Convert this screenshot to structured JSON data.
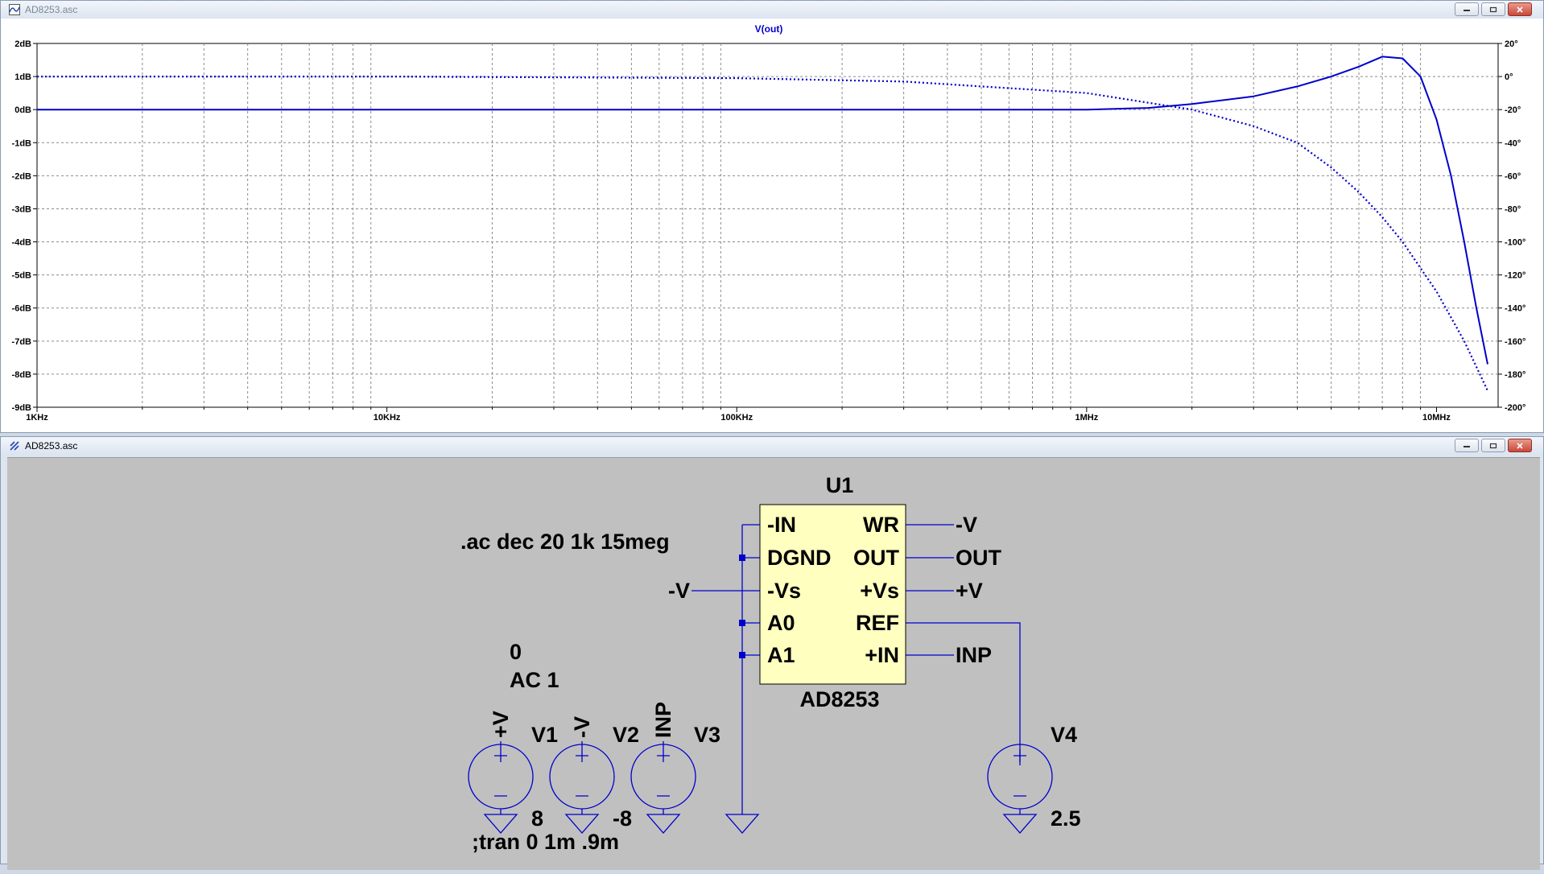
{
  "plot_window": {
    "title": "AD8253.asc",
    "icon": "waveform-icon",
    "trace_label": "V(out)",
    "left_axis_ticks": [
      "2dB",
      "1dB",
      "0dB",
      "-1dB",
      "-2dB",
      "-3dB",
      "-4dB",
      "-5dB",
      "-6dB",
      "-7dB",
      "-8dB",
      "-9dB"
    ],
    "right_axis_ticks": [
      "20°",
      "0°",
      "-20°",
      "-40°",
      "-60°",
      "-80°",
      "-100°",
      "-120°",
      "-140°",
      "-160°",
      "-180°",
      "-200°"
    ],
    "x_axis_ticks": [
      "1KHz",
      "10KHz",
      "100KHz",
      "1MHz",
      "10MHz"
    ]
  },
  "chart_data": {
    "type": "line",
    "x_scale": "log",
    "x_unit": "Hz",
    "xlim": [
      1000,
      15000000
    ],
    "ylim_left": [
      -9,
      2
    ],
    "ylim_right": [
      -200,
      20
    ],
    "grid": true,
    "trace_color": "#0000cc",
    "series": [
      {
        "name": "V(out)",
        "axis": "left",
        "style": "solid",
        "points": [
          [
            1000,
            0
          ],
          [
            100000,
            0
          ],
          [
            1000000,
            0
          ],
          [
            1500000,
            0.05
          ],
          [
            2000000,
            0.17
          ],
          [
            3000000,
            0.4
          ],
          [
            4000000,
            0.7
          ],
          [
            5000000,
            1.0
          ],
          [
            6000000,
            1.3
          ],
          [
            7000000,
            1.6
          ],
          [
            8000000,
            1.55
          ],
          [
            9000000,
            1.0
          ],
          [
            10000000,
            -0.3
          ],
          [
            11000000,
            -2.0
          ],
          [
            12000000,
            -4.0
          ],
          [
            13000000,
            -6.0
          ],
          [
            14000000,
            -7.7
          ]
        ]
      },
      {
        "name": "V(out)",
        "axis": "right",
        "style": "dotted",
        "points": [
          [
            1000,
            0
          ],
          [
            10000,
            0
          ],
          [
            100000,
            -1
          ],
          [
            300000,
            -3
          ],
          [
            1000000,
            -10
          ],
          [
            2000000,
            -20
          ],
          [
            3000000,
            -30
          ],
          [
            4000000,
            -40
          ],
          [
            5000000,
            -55
          ],
          [
            6000000,
            -70
          ],
          [
            7000000,
            -85
          ],
          [
            8000000,
            -100
          ],
          [
            10000000,
            -130
          ],
          [
            12000000,
            -160
          ],
          [
            14000000,
            -190
          ]
        ]
      }
    ]
  },
  "schematic_window": {
    "title": "AD8253.asc",
    "icon": "schematic-icon",
    "directives": {
      "ac": ".ac dec 20 1k 15meg",
      "tran": ";tran 0 1m .9m"
    },
    "component": {
      "ref": "U1",
      "value": "AD8253",
      "pins_left": [
        "-IN",
        "DGND",
        "-Vs",
        "A0",
        "A1"
      ],
      "pins_right": [
        "WR",
        "OUT",
        "+Vs",
        "REF",
        "+IN"
      ]
    },
    "net_labels": {
      "wr": "-V",
      "out": "OUT",
      "vs_plus": "+V",
      "vs_minus": "-V",
      "in_plus": "INP"
    },
    "sources": [
      {
        "ref": "V1",
        "net": "+V",
        "value": "8"
      },
      {
        "ref": "V2",
        "net": "-V",
        "value": "-8"
      },
      {
        "ref": "V3",
        "net": "INP",
        "value": ""
      },
      {
        "ref": "V4",
        "net": "",
        "value": "2.5"
      }
    ],
    "v3_spec": {
      "dc": "0",
      "ac": "AC 1"
    }
  },
  "colors": {
    "wire": "#0000cc",
    "component_fill": "#ffffc0",
    "schematic_bg": "#c0c0c0"
  }
}
